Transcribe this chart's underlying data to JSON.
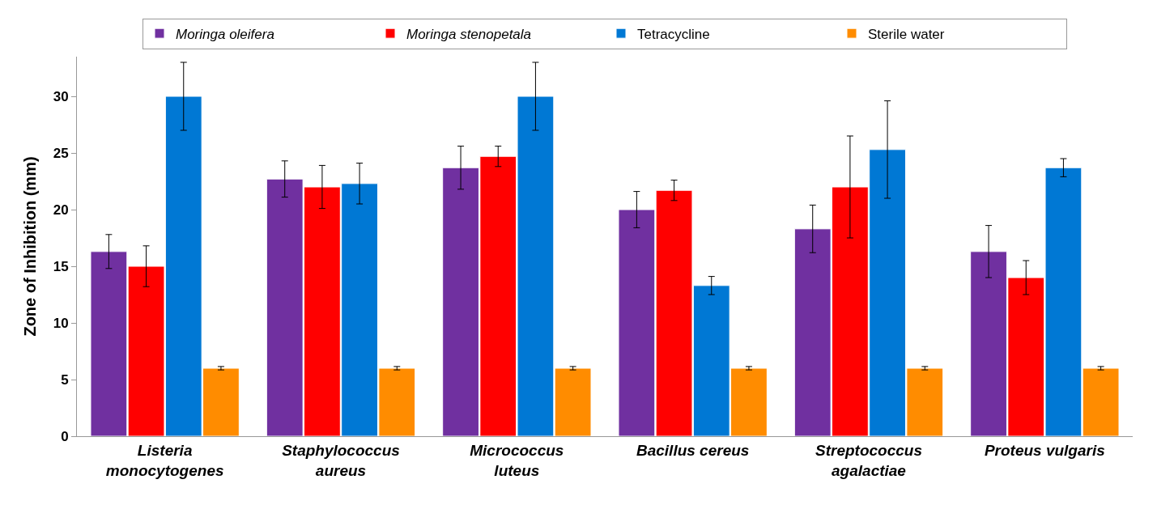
{
  "chart_data": {
    "type": "bar",
    "ylabel": "Zone of Inhibition (mm)",
    "categories": [
      "Listeria\nmonocytogenes",
      "Staphylococcus\naureus",
      "Micrococcus\nluteus",
      "Bacillus cereus",
      "Streptococcus\nagalactiae",
      "Proteus vulgaris"
    ],
    "series": [
      {
        "name": "Moringa oleifera",
        "color": "#7030a0",
        "values": [
          16.3,
          22.7,
          23.7,
          20.0,
          18.3,
          16.3
        ],
        "errors": [
          1.5,
          1.6,
          1.9,
          1.6,
          2.1,
          2.3
        ]
      },
      {
        "name": "Moringa stenopetala",
        "color": "#ff0000",
        "values": [
          15.0,
          22.0,
          24.7,
          21.7,
          22.0,
          14.0
        ],
        "errors": [
          1.8,
          1.9,
          0.9,
          0.9,
          4.5,
          1.5
        ]
      },
      {
        "name": "Tetracycline",
        "color": "#0078d4",
        "values": [
          30.0,
          22.3,
          30.0,
          13.3,
          25.3,
          23.7
        ],
        "errors": [
          3.0,
          1.8,
          3.0,
          0.8,
          4.3,
          0.8
        ]
      },
      {
        "name": "Sterile water",
        "color": "#ff8c00",
        "values": [
          6.0,
          6.0,
          6.0,
          6.0,
          6.0,
          6.0
        ],
        "errors": [
          0.15,
          0.15,
          0.15,
          0.15,
          0.15,
          0.15
        ]
      }
    ],
    "ylim": [
      0,
      33.5
    ],
    "yticks": [
      0,
      5,
      10,
      15,
      20,
      25,
      30
    ],
    "legend": "top"
  }
}
